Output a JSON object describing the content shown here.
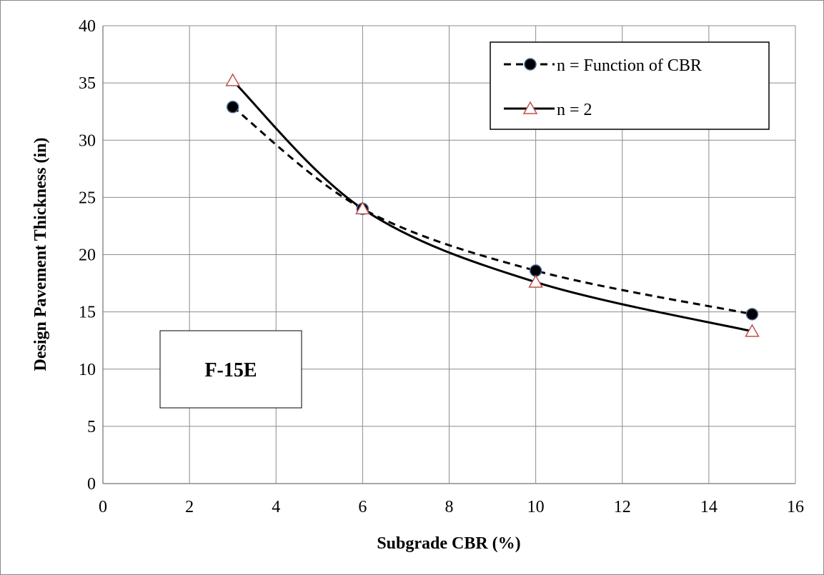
{
  "chart_data": {
    "type": "line",
    "xlabel": "Subgrade CBR (%)",
    "ylabel": "Design Pavement Thickness (in)",
    "xlim": [
      0,
      16
    ],
    "ylim": [
      0,
      40
    ],
    "xticks": [
      0,
      2,
      4,
      6,
      8,
      10,
      12,
      14,
      16
    ],
    "yticks": [
      0,
      5,
      10,
      15,
      20,
      25,
      30,
      35,
      40
    ],
    "grid": true,
    "legend_position": "top-right",
    "annotation": "F-15E",
    "series": [
      {
        "name": "n = Function of CBR",
        "x": [
          3,
          6,
          10,
          15
        ],
        "y": [
          32.9,
          24.0,
          18.6,
          14.8
        ],
        "line_style": "dashed",
        "line_color": "#000000",
        "marker": "circle",
        "marker_fill": "#000000",
        "marker_edge": "#4f6f9f"
      },
      {
        "name": "n = 2",
        "x": [
          3,
          6,
          10,
          15
        ],
        "y": [
          35.2,
          24.0,
          17.6,
          13.3
        ],
        "line_style": "solid",
        "line_color": "#000000",
        "marker": "triangle",
        "marker_fill": "#ffffff",
        "marker_edge": "#c0504d"
      }
    ]
  }
}
